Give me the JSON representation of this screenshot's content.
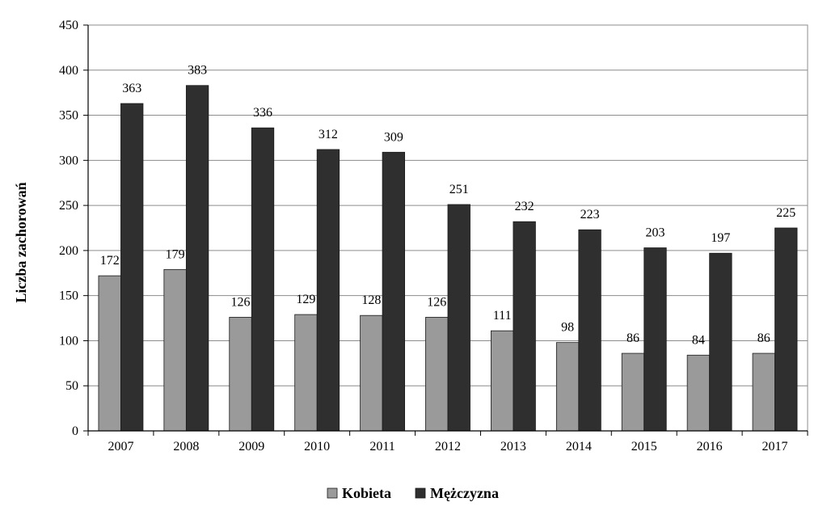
{
  "chart_data": {
    "type": "bar",
    "categories": [
      "2007",
      "2008",
      "2009",
      "2010",
      "2011",
      "2012",
      "2013",
      "2014",
      "2015",
      "2016",
      "2017"
    ],
    "series": [
      {
        "name": "Kobieta",
        "color": "#9a9a9a",
        "values": [
          172,
          179,
          126,
          129,
          128,
          126,
          111,
          98,
          86,
          84,
          86
        ]
      },
      {
        "name": "Mężczyzna",
        "color": "#2f2f2f",
        "values": [
          363,
          383,
          336,
          312,
          309,
          251,
          232,
          223,
          203,
          197,
          225
        ]
      }
    ],
    "title": "",
    "xlabel": "",
    "ylabel": "Liczba zachorowań",
    "ylim": [
      0,
      450
    ],
    "yticks": [
      0,
      50,
      100,
      150,
      200,
      250,
      300,
      350,
      400,
      450
    ],
    "grid": true,
    "legend_position": "bottom-center"
  }
}
